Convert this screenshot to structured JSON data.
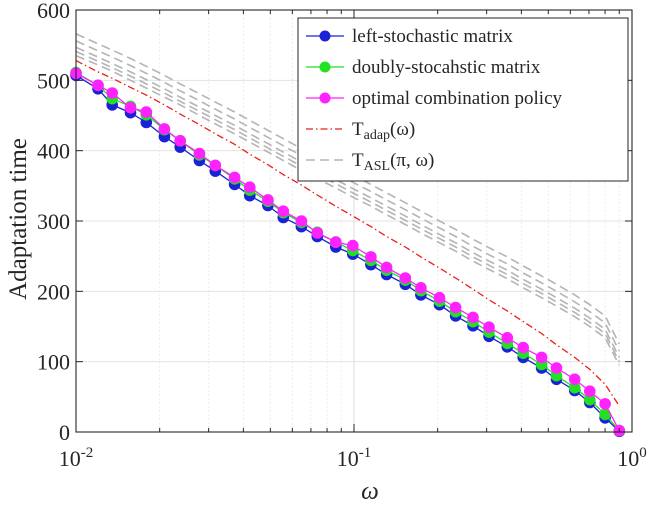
{
  "chart_data": {
    "type": "line",
    "xscale": "log",
    "xlim": [
      0.01,
      1
    ],
    "ylim": [
      0,
      600
    ],
    "xlabel": "ω",
    "ylabel": "Adaptation time",
    "grid": true,
    "legend_position": "top-right",
    "x_ticks": [
      {
        "value": 0.01,
        "base": "10",
        "exp": "-2"
      },
      {
        "value": 0.1,
        "base": "10",
        "exp": "-1"
      },
      {
        "value": 1,
        "base": "10",
        "exp": "0"
      }
    ],
    "y_ticks": [
      "0",
      "100",
      "200",
      "300",
      "400",
      "500",
      "600"
    ],
    "x": [
      0.01,
      0.012,
      0.0135,
      0.0157,
      0.0179,
      0.0208,
      0.0237,
      0.0278,
      0.0317,
      0.0372,
      0.0422,
      0.049,
      0.0557,
      0.0647,
      0.0738,
      0.086,
      0.099,
      0.115,
      0.131,
      0.153,
      0.174,
      0.203,
      0.232,
      0.268,
      0.306,
      0.356,
      0.406,
      0.473,
      0.535,
      0.622,
      0.705,
      0.8,
      0.9
    ],
    "series": [
      {
        "name": "left-stochastic matrix",
        "color": "#1a22d6",
        "style": "solid-circle",
        "values": [
          507,
          488,
          465,
          454,
          440,
          420,
          405,
          386,
          371,
          352,
          336,
          322,
          305,
          292,
          278,
          263,
          253,
          238,
          224,
          210,
          195,
          181,
          165,
          151,
          136,
          121,
          106,
          91,
          75,
          59,
          42,
          20,
          1
        ]
      },
      {
        "name": "doubly-stocahstic matrix",
        "color": "#22e022",
        "style": "solid-circle",
        "values": [
          511,
          493,
          474,
          463,
          451,
          430,
          414,
          394,
          379,
          360,
          344,
          328,
          312,
          298,
          284,
          270,
          258,
          244,
          230,
          216,
          201,
          186,
          171,
          157,
          142,
          126,
          112,
          96,
          80,
          63,
          46,
          25,
          2
        ]
      },
      {
        "name": "optimal combination policy",
        "color": "#ff22ff",
        "style": "solid-circle",
        "values": [
          510,
          493,
          482,
          461,
          455,
          431,
          414,
          396,
          379,
          362,
          348,
          330,
          314,
          300,
          283,
          270,
          265,
          249,
          234,
          219,
          205,
          191,
          177,
          163,
          149,
          134,
          120,
          106,
          91,
          75,
          58,
          40,
          2
        ]
      },
      {
        "name": "T_adap(ω)",
        "legend_main": "T",
        "legend_sub": "adap",
        "legend_arg": "(ω)",
        "color": "#e8201a",
        "style": "dashdot",
        "values": [
          528,
          512,
          503,
          490,
          479,
          465,
          452,
          437,
          424,
          409,
          395,
          380,
          366,
          351,
          337,
          321,
          307,
          292,
          278,
          263,
          249,
          233,
          219,
          203,
          188,
          172,
          157,
          140,
          124,
          106,
          89,
          68,
          37
        ]
      },
      {
        "name": "T_ASL(π, ω)",
        "legend_main": "T",
        "legend_sub": "ASL",
        "legend_arg": "(π, ω)",
        "color": "#b4b4b4",
        "style": "dashed",
        "band_values": [
          [
            535,
            522,
            513,
            500,
            489,
            476,
            465,
            450,
            438,
            424,
            412,
            398,
            386,
            372,
            360,
            347,
            334,
            321,
            309,
            295,
            283,
            269,
            257,
            243,
            231,
            218,
            205,
            191,
            179,
            164,
            150,
            134,
            95
          ],
          [
            541,
            527,
            518,
            506,
            495,
            482,
            470,
            456,
            444,
            430,
            418,
            404,
            392,
            378,
            366,
            353,
            340,
            327,
            315,
            301,
            289,
            275,
            263,
            249,
            237,
            224,
            211,
            197,
            185,
            170,
            156,
            140,
            100
          ],
          [
            547,
            533,
            524,
            512,
            501,
            488,
            476,
            462,
            450,
            436,
            424,
            410,
            398,
            384,
            372,
            359,
            346,
            333,
            321,
            307,
            295,
            281,
            269,
            255,
            243,
            230,
            217,
            203,
            191,
            176,
            162,
            146,
            106
          ],
          [
            556,
            542,
            533,
            521,
            510,
            497,
            485,
            471,
            459,
            445,
            433,
            419,
            407,
            393,
            381,
            368,
            355,
            342,
            330,
            316,
            304,
            290,
            278,
            264,
            252,
            239,
            226,
            212,
            200,
            185,
            171,
            155,
            115
          ],
          [
            566,
            552,
            543,
            531,
            520,
            507,
            495,
            481,
            469,
            455,
            443,
            429,
            417,
            403,
            391,
            378,
            365,
            352,
            340,
            326,
            314,
            300,
            288,
            274,
            262,
            249,
            236,
            222,
            210,
            195,
            181,
            165,
            125
          ]
        ]
      }
    ]
  }
}
